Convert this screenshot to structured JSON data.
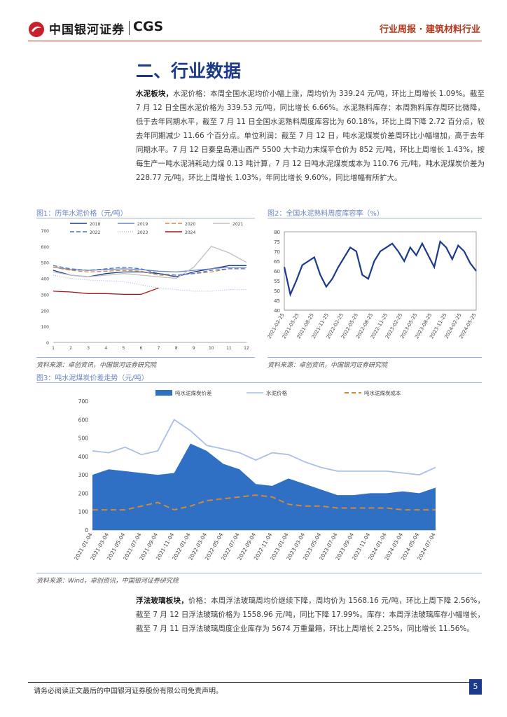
{
  "header": {
    "logo_text": "中国银河证券",
    "logo_cgs": "CGS",
    "report_tag": "行业周报 · 建筑材料行业"
  },
  "section_title": "二、行业数据",
  "cement_paragraph": {
    "lead": "水泥板块，",
    "body": "水泥价格：本周全国水泥均价小幅上涨，周均价为 339.24 元/吨，环比上周增长 1.09%。截至 7 月 12 日全国水泥价格为 339.53 元/吨，同比增长 6.66%。水泥熟料库存：本周熟料库存周环比微降，低于去年同期水平，截至 7 月 11 日全国水泥熟料周度库容比为 60.18%，环比上周下降 2.72 百分点，较去年同期减少 11.66 个百分点。单位利润：截至 7 月 12 日，吨水泥煤炭价差周环比小幅增加，高于去年同期水平。7 月 12 日秦皇岛港山西产 5500 大卡动力末煤平仓价为 852 元/吨，环比上周增长 1.43%，按每生产一吨水泥消耗动力煤 0.13 吨计算，7 月 12 日吨水泥煤炭成本为 110.76 元/吨，吨水泥煤炭价差为 228.77 元/吨，环比上周增长 1.03%，年同比增长 9.60%，同比增幅有所扩大。"
  },
  "glass_paragraph": {
    "lead": "浮法玻璃板块，",
    "body": "价格：本周浮法玻璃周均价继续下降，周均价为 1568.16 元/吨，环比上周下降 2.56%，截至 7 月 12 日浮法玻璃价格为 1558.96 元/吨，同比下降 17.99%。库存：本周浮法玻璃库存小幅增长，截至 7 月 11 日浮法玻璃周度企业库存为 5674 万重量箱，环比上周增长 2.25%，同比增长 11.56%。"
  },
  "fig1": {
    "title": "图1：历年水泥价格（元/吨）",
    "source": "资料来源：卓创资讯，中国银河证券研究院"
  },
  "fig2": {
    "title": "图2：全国水泥熟料周度库容率（%）",
    "source": "资料来源：卓创资讯，中国银河证券研究院"
  },
  "fig3": {
    "title": "图3：吨水泥煤炭价差走势（元/吨）",
    "source": "资料来源：Wind，卓创资讯，中国银河证券研究院"
  },
  "footer": {
    "disclaimer": "请务必阅读正文最后的中国银河证券股份有限公司免责声明。",
    "page_number": "5"
  },
  "colors": {
    "brand_red": "#b5371c",
    "navy": "#1b3a8c",
    "fill_blue": "#2f6fc4",
    "light_blue": "#a9bfe8",
    "orange_dash": "#d28a3a"
  },
  "chart_data": [
    {
      "type": "line",
      "ylim": [
        0,
        700
      ],
      "yticks": [
        0,
        100,
        200,
        300,
        400,
        500,
        600,
        700
      ],
      "xticks": [
        "1",
        "2",
        "3",
        "4",
        "5",
        "6",
        "7",
        "8",
        "9",
        "10",
        "11",
        "12"
      ],
      "series": [
        {
          "name": "2018",
          "color": "#1b3a8c",
          "dash": "",
          "values": [
            450,
            420,
            410,
            430,
            440,
            440,
            430,
            410,
            440,
            460,
            480,
            480
          ]
        },
        {
          "name": "2019",
          "color": "#6b86c2",
          "dash": "",
          "values": [
            470,
            455,
            450,
            455,
            460,
            455,
            445,
            440,
            450,
            460,
            470,
            470
          ]
        },
        {
          "name": "2020",
          "color": "#d28a3a",
          "dash": "6,3",
          "values": [
            470,
            450,
            440,
            445,
            450,
            445,
            420,
            420,
            430,
            440,
            460,
            460
          ]
        },
        {
          "name": "2021",
          "color": "#bfbfbf",
          "dash": "",
          "values": [
            440,
            420,
            410,
            420,
            430,
            420,
            410,
            400,
            470,
            600,
            560,
            500
          ]
        },
        {
          "name": "2022",
          "color": "#4a74c9",
          "dash": "6,3",
          "values": [
            480,
            460,
            450,
            460,
            470,
            460,
            430,
            420,
            430,
            450,
            460,
            460
          ]
        },
        {
          "name": "2023",
          "color": "#a9bfe8",
          "dash": "1,2",
          "values": [
            420,
            400,
            390,
            385,
            380,
            360,
            340,
            330,
            320,
            320,
            330,
            330
          ]
        },
        {
          "name": "2024",
          "color": "#a01818",
          "dash": "",
          "values": [
            320,
            315,
            305,
            305,
            300,
            300,
            340
          ]
        }
      ]
    },
    {
      "type": "line",
      "ylim": [
        40,
        80
      ],
      "yticks": [
        40,
        45,
        50,
        55,
        60,
        65,
        70,
        75,
        80
      ],
      "xticks": [
        "2021-02-25",
        "2021-05-25",
        "2021-08-25",
        "2021-11-25",
        "2022-02-25",
        "2022-05-25",
        "2022-08-25",
        "2022-11-25",
        "2023-02-25",
        "2023-05-25",
        "2023-08-25",
        "2023-11-25",
        "2024-02-25",
        "2024-05-25"
      ],
      "series": [
        {
          "name": "",
          "color": "#1b3a8c",
          "values": [
            62,
            48,
            55,
            63,
            65,
            67,
            58,
            52,
            56,
            62,
            67,
            72,
            70,
            58,
            56,
            65,
            70,
            72,
            74,
            70,
            65,
            72,
            68,
            74,
            68,
            62,
            75,
            72,
            66,
            73,
            70,
            64,
            60
          ]
        }
      ]
    },
    {
      "type": "area",
      "ylim": [
        0,
        700
      ],
      "yticks": [
        0,
        100,
        200,
        300,
        400,
        500,
        600,
        700
      ],
      "xticks": [
        "2021-01-04",
        "2021-03-04",
        "2021-05-04",
        "2021-07-04",
        "2021-09-04",
        "2021-11-04",
        "2022-01-04",
        "2022-03-04",
        "2022-05-04",
        "2022-07-04",
        "2022-09-04",
        "2022-11-04",
        "2023-01-04",
        "2023-03-04",
        "2023-05-04",
        "2023-07-04",
        "2023-09-04",
        "2023-11-04",
        "2024-01-04",
        "2024-03-04",
        "2024-05-04",
        "2024-07-04"
      ],
      "series": [
        {
          "name": "吨水泥煤炭价差",
          "color": "#2f6fc4",
          "kind": "area",
          "values": [
            300,
            330,
            320,
            310,
            300,
            310,
            470,
            430,
            360,
            330,
            250,
            240,
            280,
            250,
            220,
            190,
            190,
            200,
            200,
            210,
            200,
            230
          ]
        },
        {
          "name": "水泥价格",
          "color": "#a9bfe8",
          "kind": "line",
          "values": [
            430,
            420,
            450,
            410,
            430,
            600,
            540,
            460,
            440,
            420,
            380,
            420,
            410,
            370,
            340,
            320,
            320,
            320,
            320,
            310,
            300,
            340
          ]
        },
        {
          "name": "吨水泥煤炭成本",
          "color": "#d28a3a",
          "kind": "dash",
          "values": [
            110,
            110,
            110,
            130,
            150,
            110,
            130,
            160,
            170,
            180,
            190,
            180,
            140,
            130,
            130,
            120,
            120,
            120,
            120,
            110,
            110,
            110
          ]
        }
      ]
    }
  ]
}
